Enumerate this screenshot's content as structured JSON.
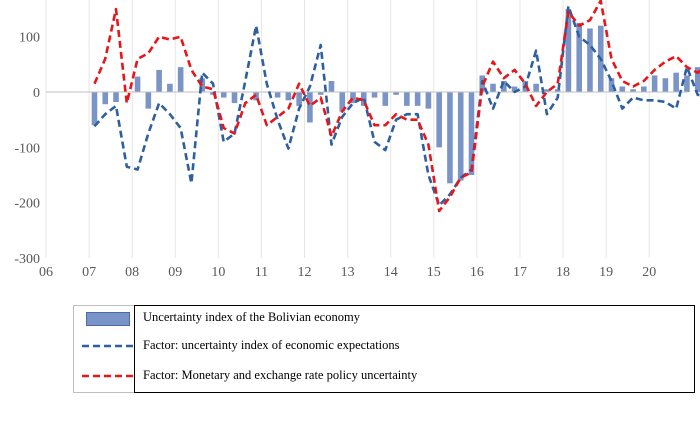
{
  "chart_data": {
    "type": "bar+line",
    "title": "",
    "xlabel": "",
    "ylabel": "",
    "ylim": [
      -300,
      170
    ],
    "yticks": [
      100,
      0,
      -100,
      -200,
      -300
    ],
    "ytick_labels": [
      "100",
      "0",
      "-100",
      "-200",
      "-300"
    ],
    "xtick_labels": [
      "06",
      "07",
      "08",
      "09",
      "10",
      "11",
      "12",
      "13",
      "14",
      "15",
      "16",
      "17",
      "18",
      "19",
      "20"
    ],
    "grid": "vertical",
    "periods_per_year": 4,
    "series": [
      {
        "name": "Uncertainty index of the Bolivian economy",
        "kind": "bar",
        "color": "#7b94c7",
        "values": [
          -60,
          -22,
          -18,
          0,
          28,
          -30,
          40,
          15,
          45,
          0,
          25,
          -5,
          -10,
          -20,
          0,
          -15,
          0,
          -10,
          -15,
          -25,
          -55,
          -5,
          20,
          -35,
          -20,
          -25,
          -10,
          -25,
          -5,
          -25,
          -25,
          -30,
          -100,
          -165,
          -160,
          -150,
          30,
          15,
          20,
          10,
          20,
          15,
          5,
          5,
          150,
          125,
          115,
          120,
          25,
          10,
          5,
          10,
          30,
          25,
          35,
          30,
          45,
          40,
          35,
          45
        ]
      },
      {
        "name": "Factor: uncertainty index of economic expectations",
        "kind": "line",
        "dash": "dashed",
        "color": "#2e5fa0",
        "values": [
          -62,
          -40,
          -25,
          -135,
          -140,
          -75,
          -20,
          -40,
          -65,
          -165,
          35,
          15,
          -90,
          -75,
          20,
          120,
          15,
          -50,
          -102,
          -30,
          10,
          85,
          -95,
          -45,
          -20,
          -10,
          -90,
          -105,
          -50,
          -40,
          -40,
          -150,
          -205,
          -185,
          -155,
          -140,
          20,
          -30,
          20,
          0,
          10,
          75,
          -40,
          -10,
          155,
          100,
          85,
          60,
          20,
          -30,
          -10,
          -15,
          -15,
          -18,
          -30,
          45,
          -5,
          -10,
          -15,
          70
        ]
      },
      {
        "name": "Factor: Monetary and exchange rate policy uncertainty",
        "kind": "line",
        "dash": "dashed",
        "color": "#e8151b",
        "values": [
          15,
          60,
          150,
          -20,
          60,
          70,
          100,
          95,
          100,
          40,
          10,
          5,
          -65,
          -75,
          -20,
          -5,
          -60,
          -45,
          -30,
          15,
          -25,
          -10,
          -80,
          -35,
          -10,
          -15,
          -60,
          -60,
          -40,
          -50,
          -50,
          -95,
          -215,
          -190,
          -155,
          -145,
          10,
          55,
          25,
          40,
          15,
          -25,
          0,
          15,
          145,
          120,
          130,
          165,
          60,
          20,
          10,
          20,
          40,
          55,
          65,
          45,
          35,
          50,
          55,
          45
        ]
      }
    ]
  }
}
